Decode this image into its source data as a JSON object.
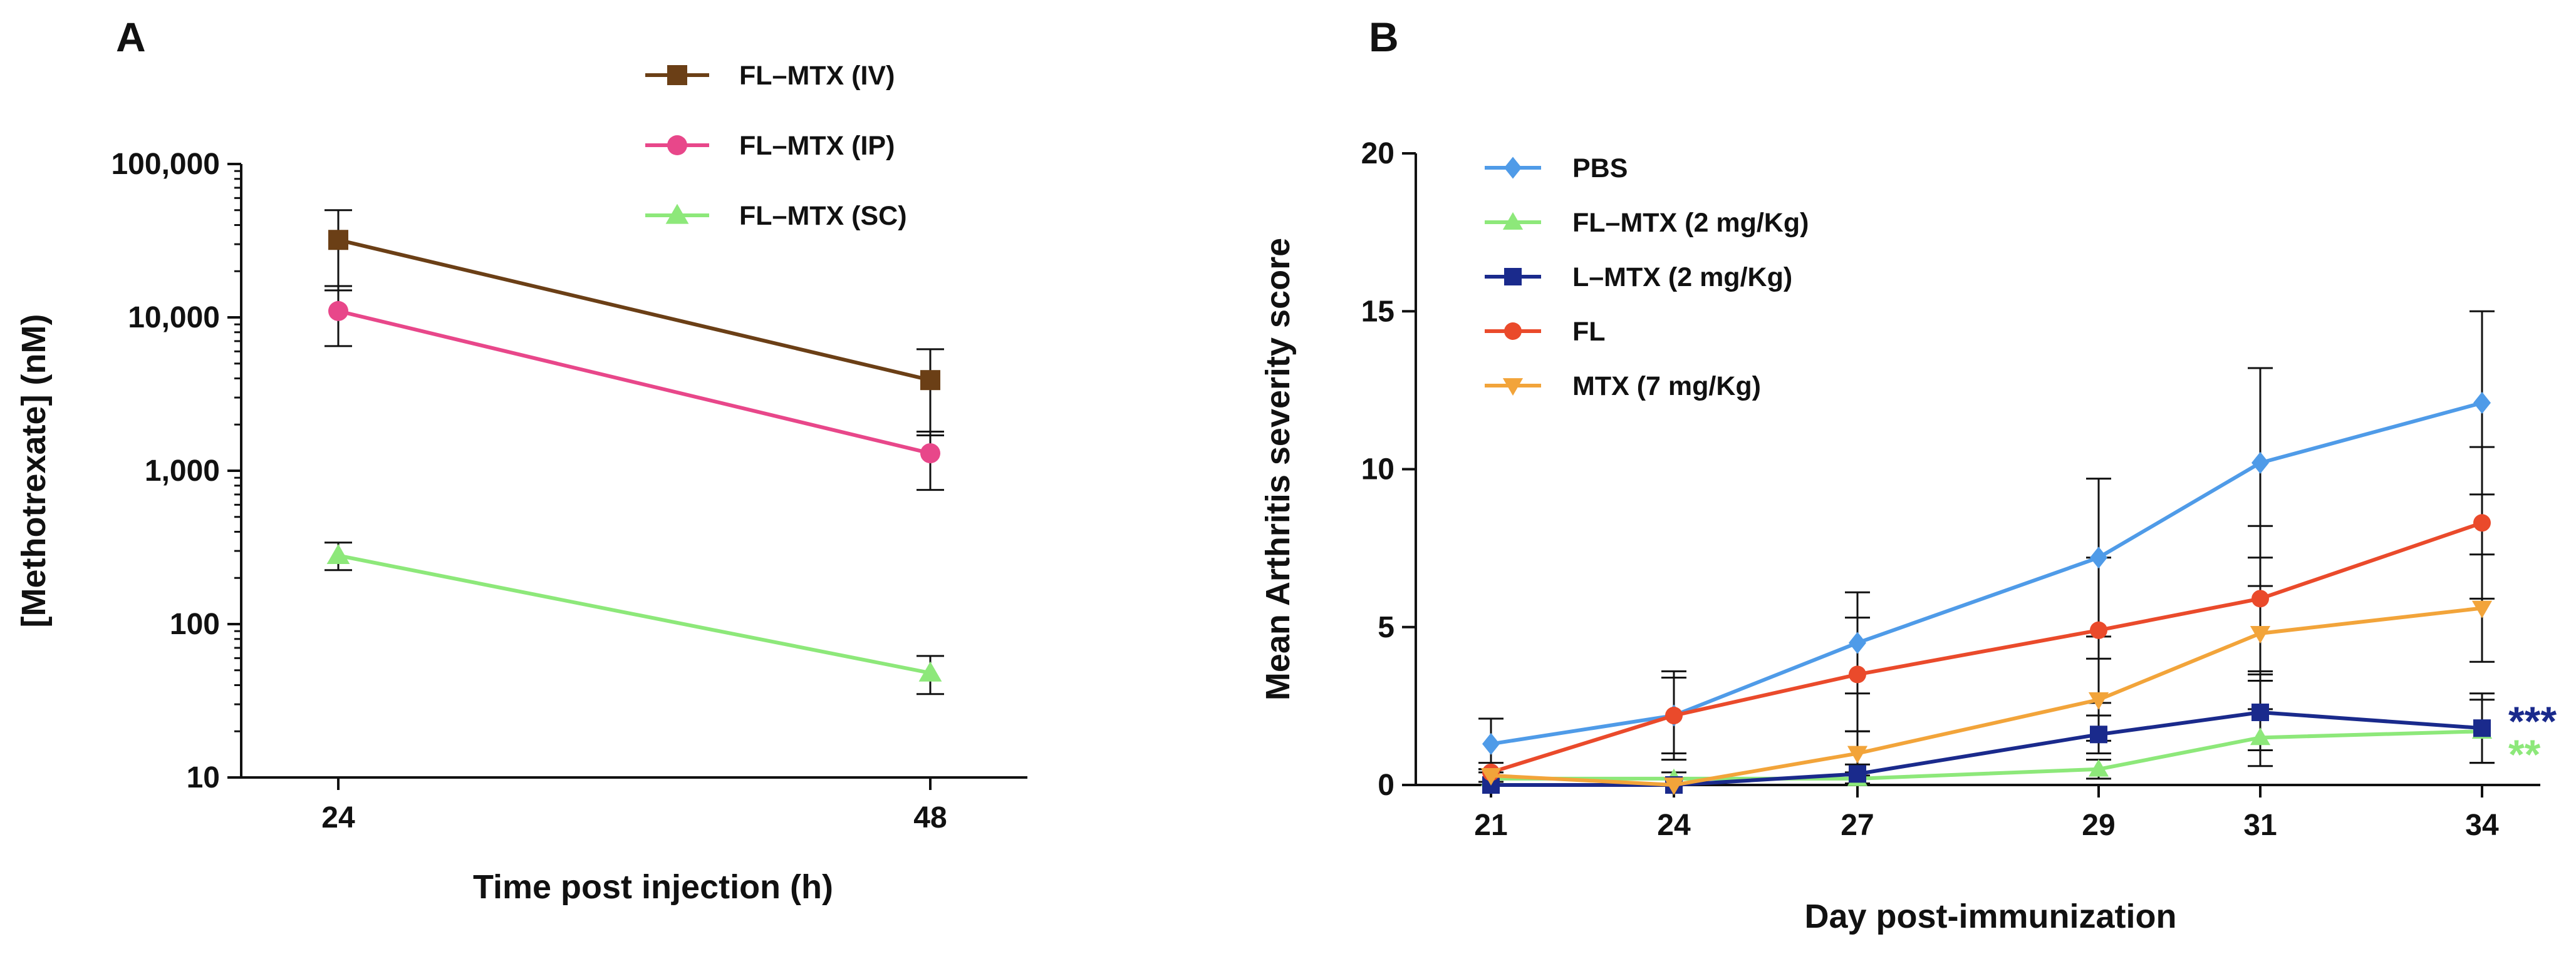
{
  "chart_data": [
    {
      "panel": "A",
      "type": "line",
      "xlabel": "Time post injection (h)",
      "ylabel": "[Methotrexate] (nM)",
      "yscale": "log",
      "ylim": [
        10,
        100000
      ],
      "categories": [
        "24",
        "48"
      ],
      "x": [
        24,
        48
      ],
      "y_ticks": [
        10,
        100,
        1000,
        10000,
        100000
      ],
      "y_tick_labels": [
        "10",
        "100",
        "1,000",
        "10,000",
        "100,000"
      ],
      "legend_position": "top-center",
      "series": [
        {
          "name": "FL–MTX (IV)",
          "color": "#6b3f16",
          "marker": "square",
          "values": [
            32000,
            3900
          ],
          "err_low": [
            15000,
            1700
          ],
          "err_high": [
            50000,
            6200
          ]
        },
        {
          "name": "FL–MTX (IP)",
          "color": "#e8478a",
          "marker": "circle",
          "values": [
            11000,
            1300
          ],
          "err_low": [
            6500,
            750
          ],
          "err_high": [
            16000,
            1800
          ]
        },
        {
          "name": "FL–MTX (SC)",
          "color": "#8de87a",
          "marker": "triangle-up",
          "values": [
            280,
            48
          ],
          "err_low": [
            225,
            35
          ],
          "err_high": [
            340,
            62
          ]
        }
      ]
    },
    {
      "panel": "B",
      "type": "line",
      "xlabel": "Day post-immunization",
      "ylabel": "Mean  Arthritis severity score",
      "ylim": [
        0,
        20
      ],
      "y_ticks": [
        0,
        5,
        10,
        15,
        20
      ],
      "categories": [
        "21",
        "24",
        "27",
        "29",
        "31",
        "34"
      ],
      "legend_position": "top-left",
      "annotations": [
        {
          "text": "***",
          "series": "L–MTX (2 mg/Kg)",
          "color": "#1a2a8c"
        },
        {
          "text": "**",
          "series": "FL–MTX (2 mg/Kg)",
          "color": "#8de87a"
        }
      ],
      "series": [
        {
          "name": "PBS",
          "color": "#4f9be8",
          "marker": "diamond",
          "values": [
            1.3,
            2.2,
            4.5,
            7.2,
            10.2,
            12.1
          ],
          "err": [
            0.8,
            1.4,
            1.6,
            2.5,
            3.0,
            2.9
          ]
        },
        {
          "name": "FL–MTX (2 mg/Kg)",
          "color": "#8de87a",
          "marker": "triangle-up",
          "values": [
            0.2,
            0.2,
            0.2,
            0.5,
            1.5,
            1.7
          ],
          "err": [
            0.2,
            0.2,
            0.2,
            0.3,
            0.9,
            1.0
          ]
        },
        {
          "name": "L–MTX (2 mg/Kg)",
          "color": "#1a2a8c",
          "marker": "square",
          "values": [
            0.0,
            0.0,
            0.35,
            1.6,
            2.3,
            1.8
          ],
          "err": [
            0.0,
            0.0,
            0.3,
            0.6,
            1.2,
            1.1
          ]
        },
        {
          "name": "FL",
          "color": "#ea4a2b",
          "marker": "circle",
          "values": [
            0.4,
            2.2,
            3.5,
            4.9,
            5.9,
            8.3
          ],
          "err": [
            0.3,
            1.2,
            1.8,
            2.3,
            2.3,
            2.4
          ]
        },
        {
          "name": "MTX (7 mg/Kg)",
          "color": "#f2a43a",
          "marker": "triangle-down",
          "values": [
            0.3,
            0.0,
            1.0,
            2.7,
            4.8,
            5.6
          ],
          "err": [
            0.2,
            0.0,
            0.7,
            1.3,
            1.5,
            1.7
          ]
        }
      ]
    }
  ]
}
